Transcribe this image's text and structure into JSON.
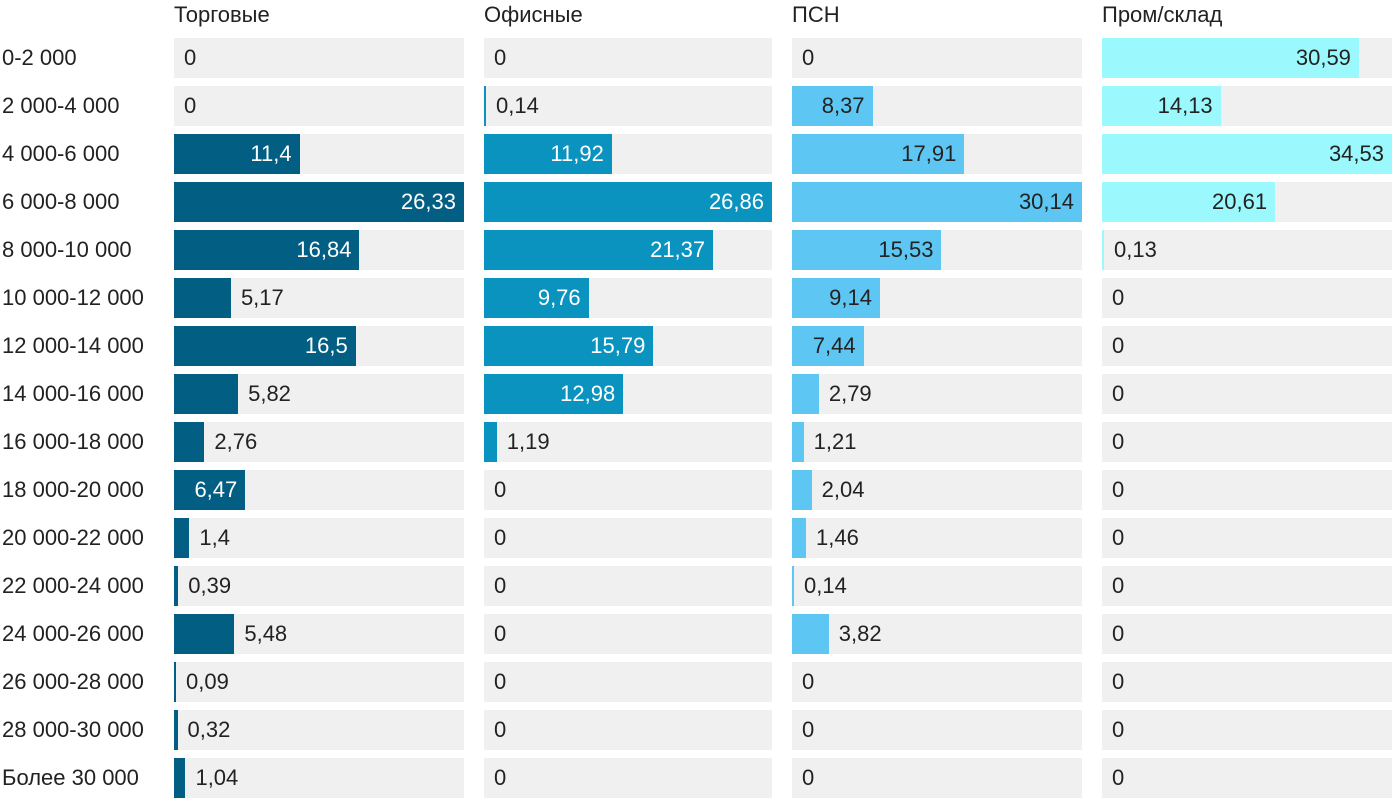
{
  "chart_data": {
    "type": "bar",
    "orientation": "horizontal",
    "layout": "small-multiples",
    "grid": false,
    "legend": "none",
    "categories": [
      "0-2 000",
      "2 000-4 000",
      "4 000-6 000",
      "6 000-8 000",
      "8 000-10 000",
      "10 000-12 000",
      "12 000-14 000",
      "14 000-16 000",
      "16 000-18 000",
      "18 000-20 000",
      "20 000-22 000",
      "22 000-24 000",
      "24 000-26 000",
      "26 000-28 000",
      "28 000-30 000",
      "Более 30 000"
    ],
    "series": [
      {
        "name": "Торговые",
        "color": "#035e84",
        "values": [
          0,
          0,
          11.4,
          26.33,
          16.84,
          5.17,
          16.5,
          5.82,
          2.76,
          6.47,
          1.4,
          0.39,
          5.48,
          0.09,
          0.32,
          1.04
        ],
        "labels": [
          "0",
          "0",
          "11,4",
          "26,33",
          "16,84",
          "5,17",
          "16,5",
          "5,82",
          "2,76",
          "6,47",
          "1,4",
          "0,39",
          "5,48",
          "0,09",
          "0,32",
          "1,04"
        ]
      },
      {
        "name": "Офисные",
        "color": "#0a93bf",
        "values": [
          0,
          0.14,
          11.92,
          26.86,
          21.37,
          9.76,
          15.79,
          12.98,
          1.19,
          0,
          0,
          0,
          0,
          0,
          0,
          0
        ],
        "labels": [
          "0",
          "0,14",
          "11,92",
          "26,86",
          "21,37",
          "9,76",
          "15,79",
          "12,98",
          "1,19",
          "0",
          "0",
          "0",
          "0",
          "0",
          "0",
          "0"
        ]
      },
      {
        "name": "ПСН",
        "color": "#5ec6f3",
        "values": [
          0,
          8.37,
          17.91,
          30.14,
          15.53,
          9.14,
          7.44,
          2.79,
          1.21,
          2.04,
          1.46,
          0.14,
          3.82,
          0,
          0,
          0
        ],
        "labels": [
          "0",
          "8,37",
          "17,91",
          "30,14",
          "15,53",
          "9,14",
          "7,44",
          "2,79",
          "1,21",
          "2,04",
          "1,46",
          "0,14",
          "3,82",
          "0",
          "0",
          "0"
        ]
      },
      {
        "name": "Пром/склад",
        "color": "#9bf9fd",
        "values": [
          30.59,
          14.13,
          34.53,
          20.61,
          0.13,
          0,
          0,
          0,
          0,
          0,
          0,
          0,
          0,
          0,
          0,
          0
        ],
        "labels": [
          "30,59",
          "14,13",
          "34,53",
          "20,61",
          "0,13",
          "0",
          "0",
          "0",
          "0",
          "0",
          "0",
          "0",
          "0",
          "0",
          "0",
          "0"
        ]
      }
    ]
  }
}
